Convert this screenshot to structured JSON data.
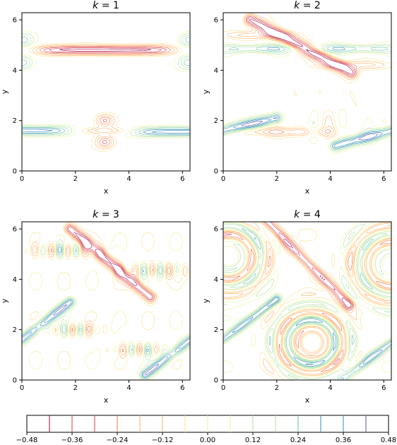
{
  "figure": {
    "panels": [
      {
        "title_var": "k",
        "title_eq": " = 1",
        "xlabel": "x",
        "ylabel": "y"
      },
      {
        "title_var": "k",
        "title_eq": " = 2",
        "xlabel": "x",
        "ylabel": "y"
      },
      {
        "title_var": "k",
        "title_eq": " = 3",
        "xlabel": "x",
        "ylabel": "y"
      },
      {
        "title_var": "k",
        "title_eq": " = 4",
        "xlabel": "x",
        "ylabel": "y"
      }
    ],
    "xticks": [
      "0",
      "2",
      "4",
      "6"
    ],
    "yticks": [
      "0",
      "2",
      "4",
      "6"
    ],
    "colorbar_ticks": [
      "−0.48",
      "−0.36",
      "−0.24",
      "−0.12",
      "0.00",
      "0.12",
      "0.24",
      "0.36",
      "0.48"
    ]
  },
  "chart_data": [
    {
      "type": "contour",
      "title": "k = 1",
      "xlabel": "x",
      "ylabel": "y",
      "xlim": [
        0,
        6.283
      ],
      "ylim": [
        0,
        6.283
      ],
      "xticks": [
        0,
        2,
        4,
        6
      ],
      "yticks": [
        0,
        2,
        4,
        6
      ],
      "features": [
        {
          "kind": "band",
          "y": 4.75,
          "x": [
            0.5,
            5.5
          ],
          "sign": "negative"
        },
        {
          "kind": "band",
          "y": 1.6,
          "x": [
            0,
            6.283
          ],
          "sign": "positive"
        },
        {
          "kind": "ring",
          "x": 3.14,
          "y": 2.0,
          "sign": "negative"
        },
        {
          "kind": "ring",
          "x": 3.14,
          "y": 1.1,
          "sign": "negative"
        }
      ]
    },
    {
      "type": "contour",
      "title": "k = 2",
      "xlabel": "x",
      "ylabel": "y",
      "xlim": [
        0,
        6.283
      ],
      "ylim": [
        0,
        6.283
      ],
      "xticks": [
        0,
        2,
        4,
        6
      ],
      "yticks": [
        0,
        2,
        4,
        6
      ]
    },
    {
      "type": "contour",
      "title": "k = 3",
      "xlabel": "x",
      "ylabel": "y",
      "xlim": [
        0,
        6.283
      ],
      "ylim": [
        0,
        6.283
      ],
      "xticks": [
        0,
        2,
        4,
        6
      ],
      "yticks": [
        0,
        2,
        4,
        6
      ]
    },
    {
      "type": "contour",
      "title": "k = 4",
      "xlabel": "x",
      "ylabel": "y",
      "xlim": [
        0,
        6.283
      ],
      "ylim": [
        0,
        6.283
      ],
      "xticks": [
        0,
        2,
        4,
        6
      ],
      "yticks": [
        0,
        2,
        4,
        6
      ]
    }
  ],
  "colorbar": {
    "min": -0.48,
    "max": 0.48,
    "levels": [
      -0.42,
      -0.36,
      -0.3,
      -0.24,
      -0.18,
      -0.12,
      -0.06,
      0.0,
      0.06,
      0.12,
      0.18,
      0.24,
      0.3,
      0.36,
      0.42
    ],
    "ticks": [
      -0.48,
      -0.36,
      -0.24,
      -0.12,
      0.0,
      0.12,
      0.24,
      0.36,
      0.48
    ],
    "colormap": "Spectral",
    "colors": [
      "#9e0142",
      "#d53e4f",
      "#f46d43",
      "#fdae61",
      "#fee08b",
      "#e6f598",
      "#abdda4",
      "#66c2a5",
      "#3288bd",
      "#5e4fa2"
    ]
  }
}
